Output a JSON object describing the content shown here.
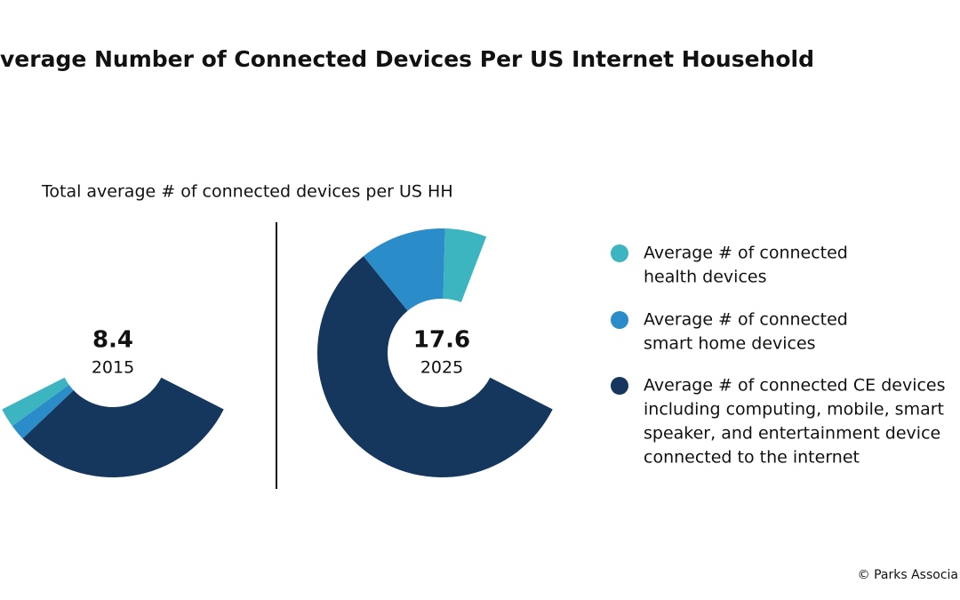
{
  "chart_data": {
    "type": "donut",
    "title": "verage Number of Connected Devices Per US Internet Household",
    "subtitle": "Total average # of connected devices per US HH",
    "categories": [
      "2015",
      "2025"
    ],
    "totals": [
      8.4,
      17.6
    ],
    "ylim": [
      0,
      24
    ],
    "series": [
      {
        "name": [
          "Average # of connected CE devices",
          "including computing, mobile, smart",
          "speaker, and entertainment device",
          "connected to the internet"
        ],
        "color": "#15375e",
        "values": [
          7.3,
          13.6
        ]
      },
      {
        "name": [
          "Average # of connected",
          "smart home devices"
        ],
        "color": "#2a8cc8",
        "values": [
          0.5,
          2.7
        ]
      },
      {
        "name": [
          "Average # of connected",
          "health devices"
        ],
        "color": "#3db5c0",
        "values": [
          0.6,
          1.3
        ]
      }
    ],
    "source": "© Parks Associa"
  }
}
